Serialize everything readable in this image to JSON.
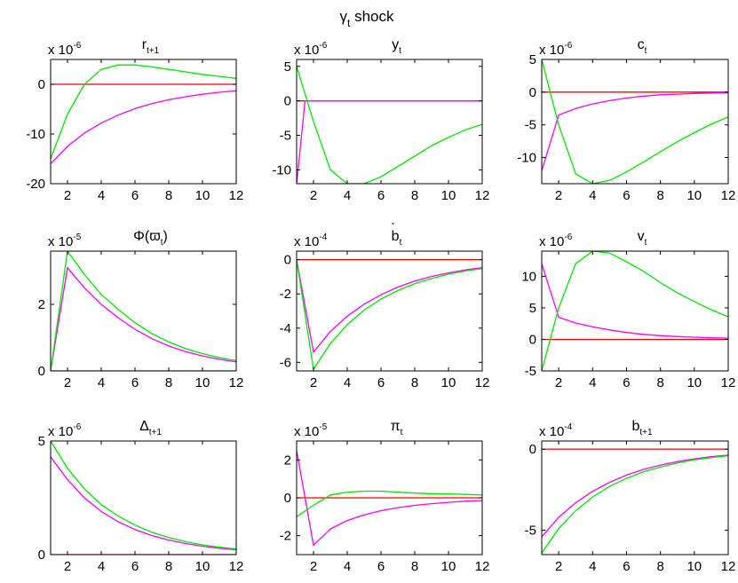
{
  "figure_title": {
    "main": "γ",
    "sub": "t",
    "rest": " shock"
  },
  "colors": {
    "red": "#ff0000",
    "green": "#00e600",
    "magenta": "#ff00ff",
    "axis": "#000000"
  },
  "chart_data": [
    {
      "type": "line",
      "title": {
        "main": "r",
        "sub": "t+1"
      },
      "multiplier": {
        "base": "x 10",
        "exp": "-6"
      },
      "xlim": [
        1,
        12
      ],
      "ylim": [
        -20,
        5
      ],
      "xticks": [
        2,
        4,
        6,
        8,
        10,
        12
      ],
      "yticks": [
        -20,
        -10,
        0
      ],
      "series": [
        {
          "color": "red",
          "x": [
            1,
            12
          ],
          "y": [
            0,
            0
          ]
        },
        {
          "color": "magenta",
          "x": [
            1,
            2,
            3,
            4,
            5,
            6,
            7,
            8,
            9,
            10,
            11,
            12
          ],
          "y": [
            -16,
            -12.5,
            -9.8,
            -7.8,
            -6.2,
            -4.9,
            -3.9,
            -3.1,
            -2.5,
            -2.0,
            -1.6,
            -1.3
          ]
        },
        {
          "color": "green",
          "x": [
            1,
            2,
            3,
            4,
            5,
            6,
            7,
            8,
            9,
            10,
            11,
            12
          ],
          "y": [
            -15,
            -6,
            0,
            3,
            3.9,
            3.9,
            3.5,
            3.0,
            2.5,
            2.0,
            1.6,
            1.2
          ]
        }
      ]
    },
    {
      "type": "line",
      "title": {
        "main": "y",
        "sub": "t"
      },
      "multiplier": {
        "base": "x 10",
        "exp": "-6"
      },
      "xlim": [
        1,
        12
      ],
      "ylim": [
        -12,
        6
      ],
      "xticks": [
        2,
        4,
        6,
        8,
        10,
        12
      ],
      "yticks": [
        -10,
        -5,
        0,
        5
      ],
      "series": [
        {
          "color": "red",
          "x": [
            1,
            12
          ],
          "y": [
            0,
            0
          ]
        },
        {
          "color": "magenta",
          "x": [
            1,
            1.5,
            12
          ],
          "y": [
            -12,
            0,
            0
          ]
        },
        {
          "color": "green",
          "x": [
            1,
            2,
            3,
            4,
            4.5,
            5,
            6,
            7,
            8,
            9,
            10,
            11,
            12
          ],
          "y": [
            5,
            -3,
            -10,
            -12,
            -12,
            -12,
            -11,
            -9.5,
            -8,
            -6.5,
            -5.3,
            -4.2,
            -3.4
          ]
        }
      ]
    },
    {
      "type": "line",
      "title": {
        "main": "c",
        "sub": "t"
      },
      "multiplier": {
        "base": "x 10",
        "exp": "-6"
      },
      "xlim": [
        1,
        12
      ],
      "ylim": [
        -14,
        5
      ],
      "xticks": [
        2,
        4,
        6,
        8,
        10,
        12
      ],
      "yticks": [
        -10,
        -5,
        0,
        5
      ],
      "series": [
        {
          "color": "red",
          "x": [
            1,
            12
          ],
          "y": [
            0,
            0
          ]
        },
        {
          "color": "magenta",
          "x": [
            1,
            2,
            3,
            4,
            5,
            6,
            7,
            8,
            9,
            10,
            11,
            12
          ],
          "y": [
            -12,
            -3.5,
            -2.5,
            -1.8,
            -1.3,
            -0.9,
            -0.6,
            -0.4,
            -0.3,
            -0.2,
            -0.15,
            -0.1
          ]
        },
        {
          "color": "green",
          "x": [
            1,
            2,
            3,
            4,
            5,
            6,
            7,
            8,
            9,
            10,
            11,
            12
          ],
          "y": [
            5,
            -5,
            -12.5,
            -14,
            -13.5,
            -12.2,
            -10.7,
            -9.1,
            -7.6,
            -6.2,
            -4.9,
            -3.8
          ]
        }
      ]
    },
    {
      "type": "line",
      "title": {
        "main": "Φ(ϖ",
        "sub": "t",
        "post": ")"
      },
      "multiplier": {
        "base": "x 10",
        "exp": "-5"
      },
      "xlim": [
        1,
        12
      ],
      "ylim": [
        0,
        3.6
      ],
      "xticks": [
        2,
        4,
        6,
        8,
        10,
        12
      ],
      "yticks": [
        0,
        2
      ],
      "series": [
        {
          "color": "red",
          "x": [
            1,
            12
          ],
          "y": [
            0,
            0
          ]
        },
        {
          "color": "magenta",
          "x": [
            1,
            2,
            3,
            4,
            5,
            6,
            7,
            8,
            9,
            10,
            11,
            12
          ],
          "y": [
            0,
            3.1,
            2.5,
            2.0,
            1.6,
            1.25,
            0.97,
            0.75,
            0.58,
            0.45,
            0.35,
            0.27
          ]
        },
        {
          "color": "green",
          "x": [
            1,
            2,
            3,
            4,
            5,
            6,
            7,
            8,
            9,
            10,
            11,
            12
          ],
          "y": [
            0,
            3.6,
            2.9,
            2.3,
            1.85,
            1.45,
            1.12,
            0.87,
            0.67,
            0.52,
            0.4,
            0.31
          ]
        }
      ]
    },
    {
      "type": "line",
      "title": {
        "main": "b",
        "sub": "t",
        "bar": "-"
      },
      "multiplier": {
        "base": "x 10",
        "exp": "-4"
      },
      "xlim": [
        1,
        12
      ],
      "ylim": [
        -6.5,
        0.5
      ],
      "xticks": [
        2,
        4,
        6,
        8,
        10,
        12
      ],
      "yticks": [
        -6,
        -4,
        -2,
        0
      ],
      "series": [
        {
          "color": "red",
          "x": [
            1,
            12
          ],
          "y": [
            0,
            0
          ]
        },
        {
          "color": "magenta",
          "x": [
            1,
            2,
            3,
            4,
            5,
            6,
            7,
            8,
            9,
            10,
            11,
            12
          ],
          "y": [
            0,
            -5.4,
            -4.2,
            -3.3,
            -2.6,
            -2.05,
            -1.6,
            -1.25,
            -0.98,
            -0.77,
            -0.6,
            -0.47
          ]
        },
        {
          "color": "green",
          "x": [
            1,
            2,
            3,
            4,
            5,
            6,
            7,
            8,
            9,
            10,
            11,
            12
          ],
          "y": [
            0,
            -6.4,
            -4.9,
            -3.8,
            -2.95,
            -2.3,
            -1.8,
            -1.4,
            -1.1,
            -0.85,
            -0.66,
            -0.52
          ]
        }
      ]
    },
    {
      "type": "line",
      "title": {
        "main": "v",
        "sub": "t"
      },
      "multiplier": {
        "base": "x 10",
        "exp": "-6"
      },
      "xlim": [
        1,
        12
      ],
      "ylim": [
        -5,
        14
      ],
      "xticks": [
        2,
        4,
        6,
        8,
        10,
        12
      ],
      "yticks": [
        -5,
        0,
        5,
        10
      ],
      "series": [
        {
          "color": "red",
          "x": [
            1,
            12
          ],
          "y": [
            0,
            0
          ]
        },
        {
          "color": "magenta",
          "x": [
            1,
            2,
            3,
            4,
            5,
            6,
            7,
            8,
            9,
            10,
            11,
            12
          ],
          "y": [
            12,
            3.5,
            2.6,
            2.0,
            1.5,
            1.1,
            0.8,
            0.6,
            0.45,
            0.35,
            0.25,
            0.2
          ]
        },
        {
          "color": "green",
          "x": [
            1,
            2,
            3,
            4,
            5,
            6,
            7,
            8,
            9,
            10,
            11,
            12
          ],
          "y": [
            -5,
            5,
            12,
            14,
            13.7,
            12.3,
            10.8,
            9.0,
            7.4,
            6.0,
            4.7,
            3.6
          ]
        }
      ]
    },
    {
      "type": "line",
      "title": {
        "main": "Δ",
        "sub": "t+1"
      },
      "multiplier": {
        "base": "x 10",
        "exp": "-6"
      },
      "xlim": [
        1,
        12
      ],
      "ylim": [
        0,
        5
      ],
      "xticks": [
        2,
        4,
        6,
        8,
        10,
        12
      ],
      "yticks": [
        0,
        5
      ],
      "series": [
        {
          "color": "red",
          "x": [
            1,
            12
          ],
          "y": [
            0,
            0
          ]
        },
        {
          "color": "magenta",
          "x": [
            1,
            2,
            3,
            4,
            5,
            6,
            7,
            8,
            9,
            10,
            11,
            12
          ],
          "y": [
            4.3,
            3.3,
            2.5,
            1.9,
            1.45,
            1.1,
            0.84,
            0.64,
            0.49,
            0.37,
            0.28,
            0.21
          ]
        },
        {
          "color": "green",
          "x": [
            1,
            2,
            3,
            4,
            5,
            6,
            7,
            8,
            9,
            10,
            11,
            12
          ],
          "y": [
            5.0,
            3.8,
            2.9,
            2.2,
            1.7,
            1.3,
            0.98,
            0.75,
            0.57,
            0.43,
            0.33,
            0.25
          ]
        }
      ]
    },
    {
      "type": "line",
      "title": {
        "main": "π",
        "sub": "t"
      },
      "multiplier": {
        "base": "x 10",
        "exp": "-5"
      },
      "xlim": [
        1,
        12
      ],
      "ylim": [
        -3,
        3
      ],
      "xticks": [
        2,
        4,
        6,
        8,
        10,
        12
      ],
      "yticks": [
        -2,
        0,
        2
      ],
      "series": [
        {
          "color": "red",
          "x": [
            1,
            12
          ],
          "y": [
            0,
            0
          ]
        },
        {
          "color": "magenta",
          "x": [
            1,
            2,
            3,
            4,
            5,
            6,
            7,
            8,
            9,
            10,
            11,
            12
          ],
          "y": [
            2.5,
            -2.5,
            -1.65,
            -1.2,
            -0.9,
            -0.68,
            -0.52,
            -0.4,
            -0.31,
            -0.24,
            -0.18,
            -0.14
          ]
        },
        {
          "color": "green",
          "x": [
            1,
            2,
            3,
            4,
            5,
            6,
            7,
            8,
            9,
            10,
            11,
            12
          ],
          "y": [
            -1.0,
            -0.4,
            0.15,
            0.3,
            0.35,
            0.35,
            0.3,
            0.25,
            0.22,
            0.2,
            0.18,
            0.15
          ]
        }
      ]
    },
    {
      "type": "line",
      "title": {
        "main": "b",
        "sub": "t+1"
      },
      "multiplier": {
        "base": "x 10",
        "exp": "-4"
      },
      "xlim": [
        1,
        12
      ],
      "ylim": [
        -6.5,
        0.5
      ],
      "xticks": [
        2,
        4,
        6,
        8,
        10,
        12
      ],
      "yticks": [
        -5,
        0
      ],
      "series": [
        {
          "color": "red",
          "x": [
            1,
            12
          ],
          "y": [
            0,
            0
          ]
        },
        {
          "color": "magenta",
          "x": [
            1,
            2,
            3,
            4,
            5,
            6,
            7,
            8,
            9,
            10,
            11,
            12
          ],
          "y": [
            -5.4,
            -4.2,
            -3.3,
            -2.6,
            -2.05,
            -1.6,
            -1.25,
            -0.98,
            -0.77,
            -0.6,
            -0.47,
            -0.37
          ]
        },
        {
          "color": "green",
          "x": [
            1,
            2,
            3,
            4,
            5,
            6,
            7,
            8,
            9,
            10,
            11,
            12
          ],
          "y": [
            -6.4,
            -4.9,
            -3.8,
            -2.95,
            -2.3,
            -1.8,
            -1.4,
            -1.1,
            -0.85,
            -0.66,
            -0.52,
            -0.4
          ]
        }
      ]
    }
  ]
}
